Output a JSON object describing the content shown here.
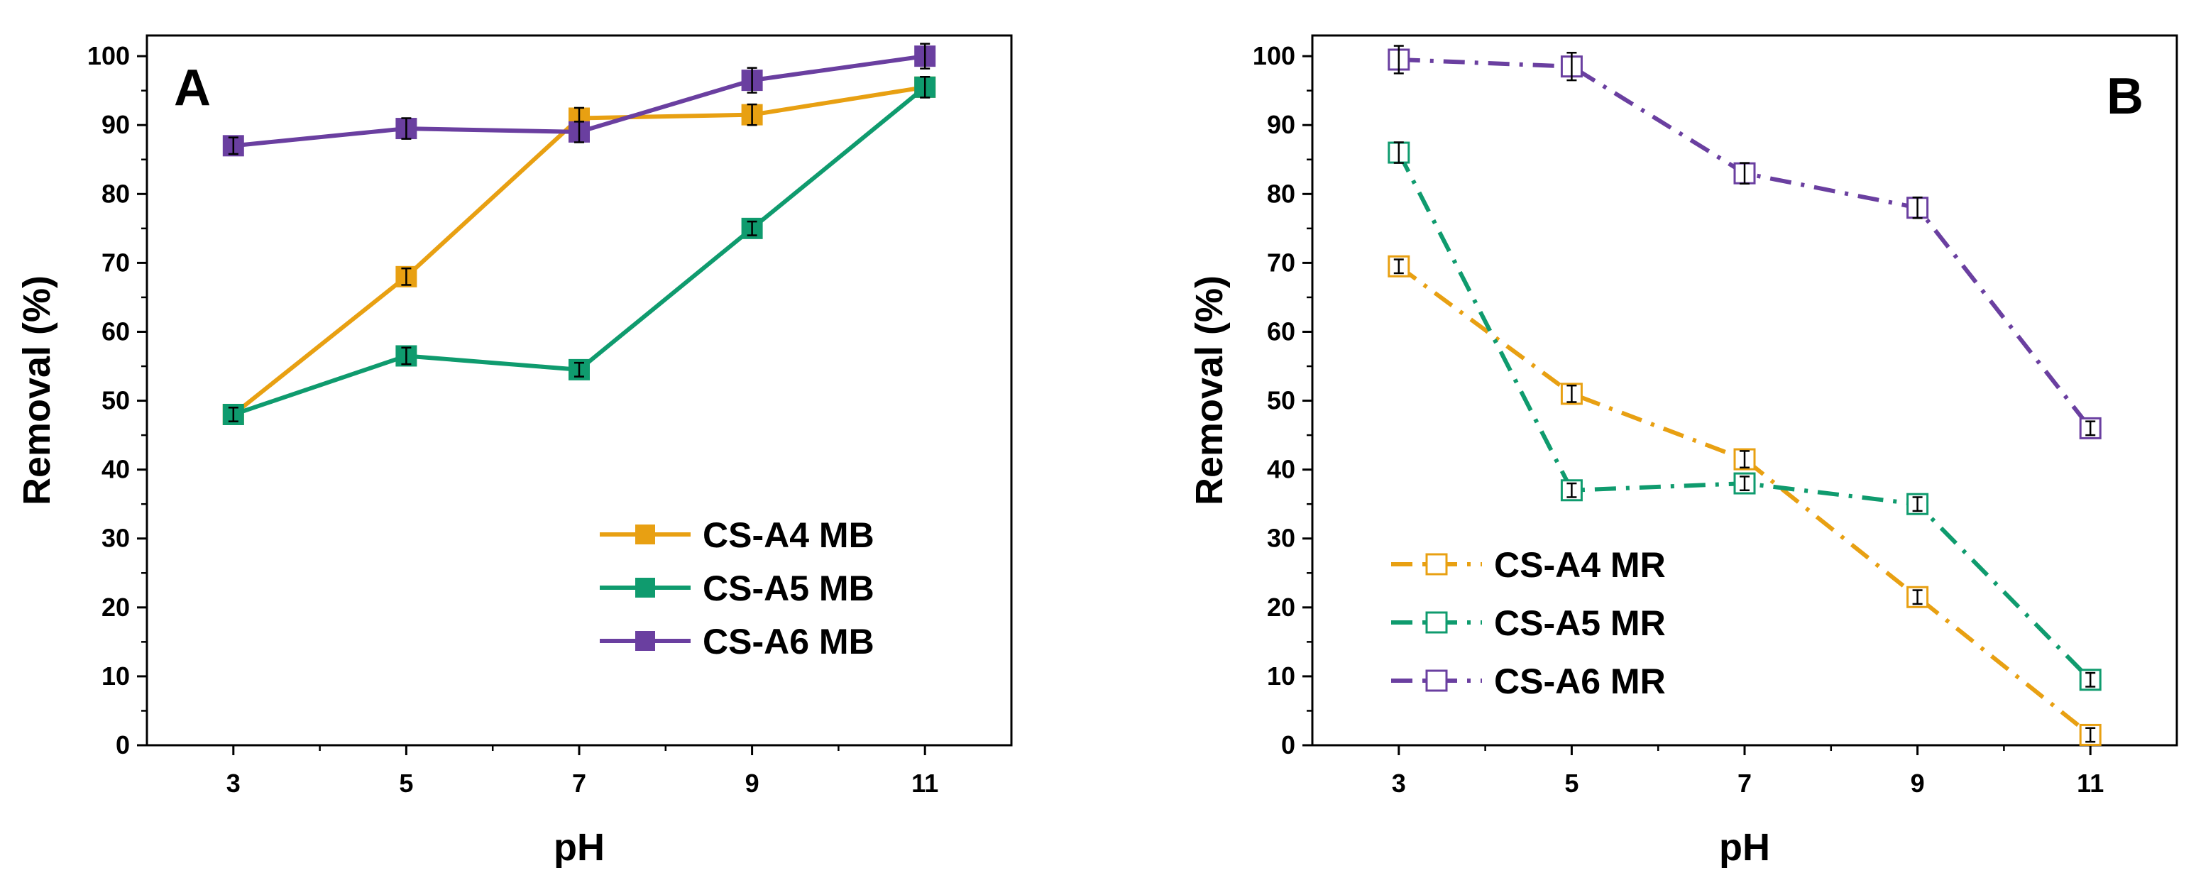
{
  "chart_data": [
    {
      "type": "line",
      "panel_label": "A",
      "title": "",
      "xlabel": "pH",
      "ylabel": "Removal (%)",
      "x": [
        3,
        5,
        7,
        9,
        11
      ],
      "x_tick_labels": [
        "3",
        "5",
        "7",
        "9",
        "11"
      ],
      "xlim": [
        2,
        12
      ],
      "ylim": [
        0,
        103
      ],
      "y_ticks": [
        0,
        10,
        20,
        30,
        40,
        50,
        60,
        70,
        80,
        90,
        100
      ],
      "y_tick_labels": [
        "0",
        "10",
        "20",
        "30",
        "40",
        "50",
        "60",
        "70",
        "80",
        "90",
        "100"
      ],
      "legend_position": "bottom-right",
      "grid": false,
      "series": [
        {
          "name": "CS-A4 MB",
          "color": "#E8A012",
          "line_style": "solid",
          "marker": "filled-square",
          "values": [
            48,
            68,
            91,
            91.5,
            95.5
          ],
          "errors": [
            1,
            1.2,
            1.5,
            1.5,
            1.5
          ]
        },
        {
          "name": "CS-A5 MB",
          "color": "#0F9B6E",
          "line_style": "solid",
          "marker": "filled-square",
          "values": [
            48,
            56.5,
            54.5,
            75,
            95.5
          ],
          "errors": [
            1,
            1.2,
            1,
            1,
            1.5
          ]
        },
        {
          "name": "CS-A6 MB",
          "color": "#6A3FA0",
          "line_style": "solid",
          "marker": "filled-square",
          "values": [
            87,
            89.5,
            89,
            96.5,
            100
          ],
          "errors": [
            1.2,
            1.5,
            1.5,
            1.8,
            1.8
          ]
        }
      ]
    },
    {
      "type": "line",
      "panel_label": "B",
      "title": "",
      "xlabel": "pH",
      "ylabel": "Removal (%)",
      "x": [
        3,
        5,
        7,
        9,
        11
      ],
      "x_tick_labels": [
        "3",
        "5",
        "7",
        "9",
        "11"
      ],
      "xlim": [
        2,
        12
      ],
      "ylim": [
        0,
        103
      ],
      "y_ticks": [
        0,
        10,
        20,
        30,
        40,
        50,
        60,
        70,
        80,
        90,
        100
      ],
      "y_tick_labels": [
        "0",
        "10",
        "20",
        "30",
        "40",
        "50",
        "60",
        "70",
        "80",
        "90",
        "100"
      ],
      "legend_position": "bottom-left",
      "grid": false,
      "series": [
        {
          "name": "CS-A4 MR",
          "color": "#E8A012",
          "line_style": "dash-dot",
          "marker": "open-square",
          "values": [
            69.5,
            51,
            41.5,
            21.5,
            1.5
          ],
          "errors": [
            1,
            1.2,
            1.2,
            1,
            1
          ]
        },
        {
          "name": "CS-A5 MR",
          "color": "#0F9B6E",
          "line_style": "dash-dot",
          "marker": "open-square",
          "values": [
            86,
            37,
            38,
            35,
            9.5
          ],
          "errors": [
            1.5,
            1,
            1,
            1,
            1
          ]
        },
        {
          "name": "CS-A6 MR",
          "color": "#6A3FA0",
          "line_style": "dash-dot",
          "marker": "open-square",
          "values": [
            99.5,
            98.5,
            83,
            78,
            46
          ],
          "errors": [
            2,
            2,
            1.5,
            1.5,
            1
          ]
        }
      ]
    }
  ]
}
